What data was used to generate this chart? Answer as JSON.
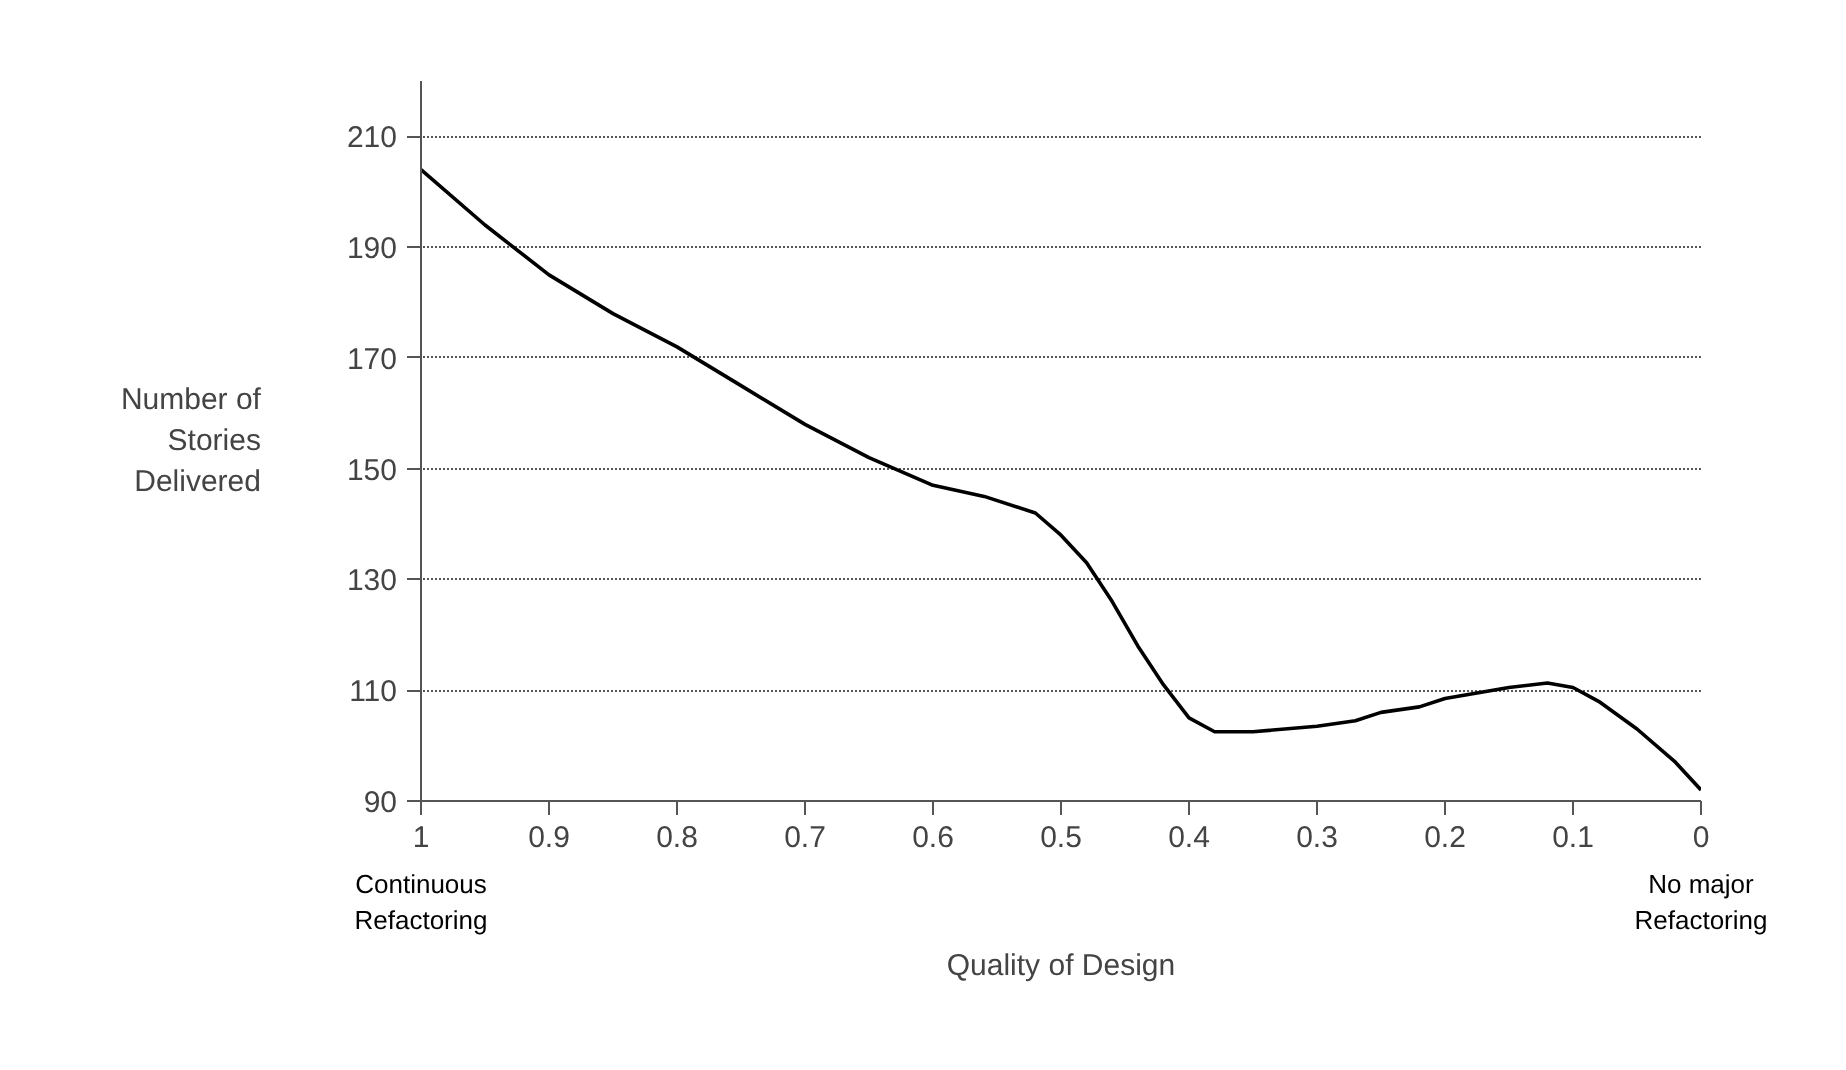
{
  "chart_data": {
    "type": "line",
    "xlabel": "Quality of Design",
    "ylabel": "Number of\nStories\nDelivered",
    "x": [
      1,
      0.95,
      0.9,
      0.85,
      0.8,
      0.75,
      0.7,
      0.65,
      0.6,
      0.56,
      0.52,
      0.5,
      0.48,
      0.46,
      0.44,
      0.42,
      0.4,
      0.38,
      0.35,
      0.3,
      0.27,
      0.25,
      0.22,
      0.2,
      0.15,
      0.12,
      0.1,
      0.08,
      0.05,
      0.02,
      0
    ],
    "series": [
      {
        "color": "#000000",
        "values": [
          204,
          194,
          185,
          178,
          172,
          165,
          158,
          152,
          147,
          145,
          142,
          138,
          133,
          126,
          118,
          111,
          105,
          102.5,
          102.5,
          103.5,
          104.5,
          106,
          107,
          108.5,
          110.5,
          111.3,
          110.5,
          108,
          103,
          97,
          92
        ]
      }
    ],
    "xlim": [
      1,
      0
    ],
    "xticks": [
      1,
      {
        "value": 0.9,
        "label": "0.9"
      },
      {
        "value": 0.8,
        "label": "0.8"
      },
      {
        "value": 0.7,
        "label": "0.7"
      },
      {
        "value": 0.6,
        "label": "0.6"
      },
      {
        "value": 0.5,
        "label": "0.5"
      },
      {
        "value": 0.4,
        "label": "0.4"
      },
      {
        "value": 0.3,
        "label": "0.3"
      },
      {
        "value": 0.2,
        "label": "0.2"
      },
      {
        "value": 0.1,
        "label": "0.1"
      },
      0
    ],
    "ylim": [
      90,
      220
    ],
    "yticks": [
      90,
      110,
      130,
      150,
      170,
      190,
      210
    ],
    "grid": "y",
    "marker": "none",
    "line_style": "solid",
    "annotations": [
      "Continuous\nRefactoring",
      "No major\nRefactoring"
    ]
  }
}
